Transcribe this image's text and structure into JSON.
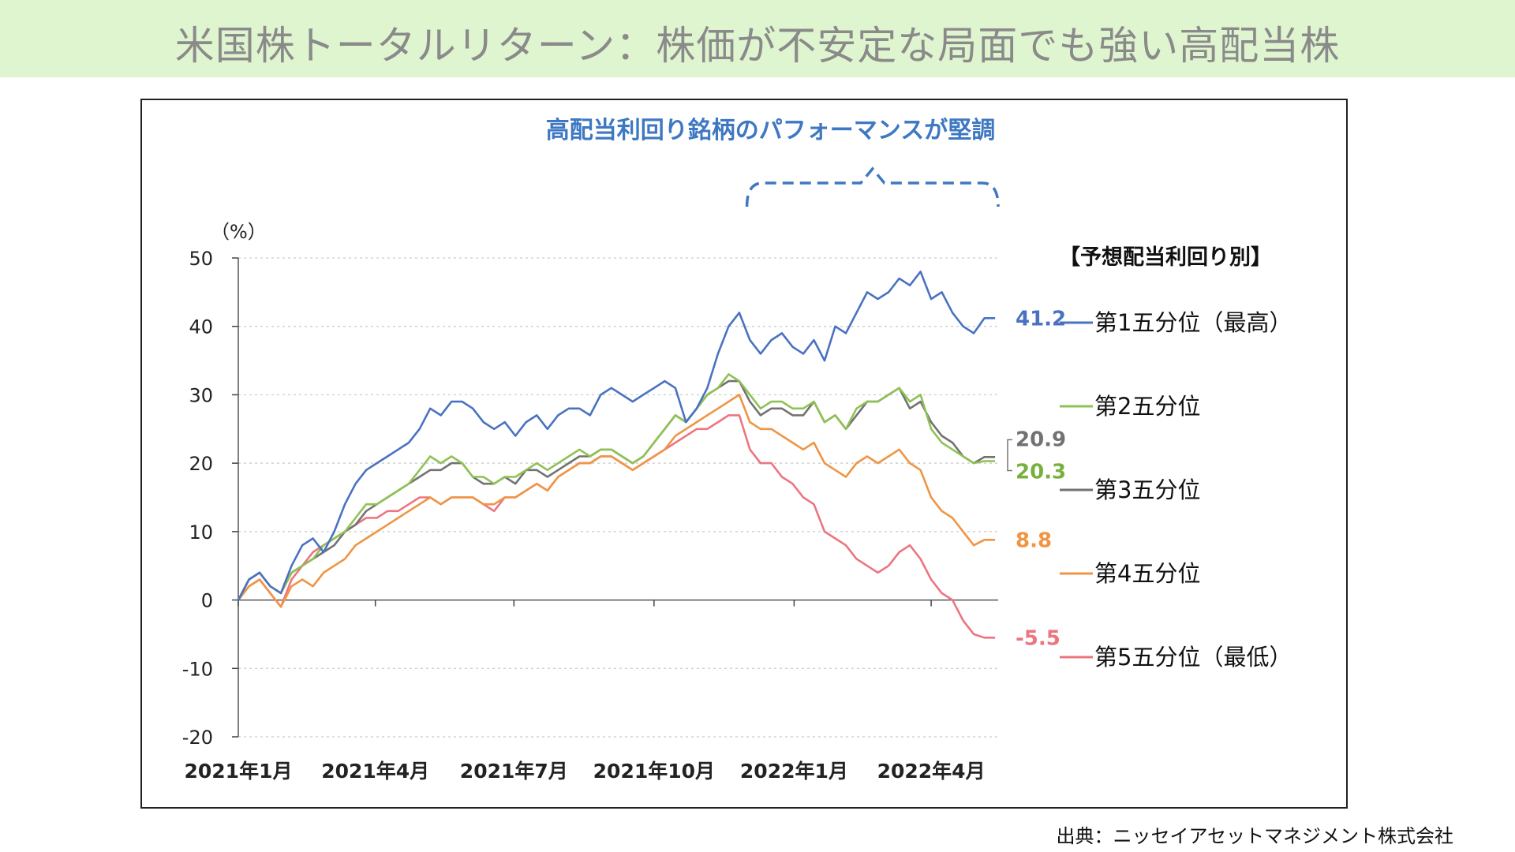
{
  "page": {
    "title": "米国株トータルリターン：株価が不安定な局面でも強い高配当株",
    "source": "出典：ニッセイアセットマネジメント株式会社"
  },
  "chart_data": {
    "type": "line",
    "title": "高配当利回り銘柄のパフォーマンスが堅調",
    "yunit": "（%）",
    "ylim": [
      -20,
      50
    ],
    "yticks": [
      50,
      40,
      30,
      20,
      10,
      0,
      -10,
      -20
    ],
    "xlim": [
      "2021-01-01",
      "2022-05-15"
    ],
    "xtick_labels": [
      "2021年1月",
      "2021年4月",
      "2021年7月",
      "2021年10月",
      "2022年1月",
      "2022年4月"
    ],
    "xtick_dates": [
      "2021-01-01",
      "2021-04-01",
      "2021-07-01",
      "2021-10-01",
      "2022-01-01",
      "2022-04-01"
    ],
    "grid": "horizontal dotted",
    "legend_title": "【予想配当利回り別】",
    "legend_placement": "right",
    "highlight_range": [
      "2021-12-01",
      "2022-05-15"
    ],
    "x": [
      "2021-01-01",
      "2021-01-08",
      "2021-01-15",
      "2021-01-22",
      "2021-01-29",
      "2021-02-05",
      "2021-02-12",
      "2021-02-19",
      "2021-02-26",
      "2021-03-05",
      "2021-03-12",
      "2021-03-19",
      "2021-03-26",
      "2021-04-02",
      "2021-04-09",
      "2021-04-16",
      "2021-04-23",
      "2021-04-30",
      "2021-05-07",
      "2021-05-14",
      "2021-05-21",
      "2021-05-28",
      "2021-06-04",
      "2021-06-11",
      "2021-06-18",
      "2021-06-25",
      "2021-07-02",
      "2021-07-09",
      "2021-07-16",
      "2021-07-23",
      "2021-07-30",
      "2021-08-06",
      "2021-08-13",
      "2021-08-20",
      "2021-08-27",
      "2021-09-03",
      "2021-09-10",
      "2021-09-17",
      "2021-09-24",
      "2021-10-01",
      "2021-10-08",
      "2021-10-15",
      "2021-10-22",
      "2021-10-29",
      "2021-11-05",
      "2021-11-12",
      "2021-11-19",
      "2021-11-26",
      "2021-12-03",
      "2021-12-10",
      "2021-12-17",
      "2021-12-24",
      "2021-12-31",
      "2022-01-07",
      "2022-01-14",
      "2022-01-21",
      "2022-01-28",
      "2022-02-04",
      "2022-02-11",
      "2022-02-18",
      "2022-02-25",
      "2022-03-04",
      "2022-03-11",
      "2022-03-18",
      "2022-03-25",
      "2022-04-01",
      "2022-04-08",
      "2022-04-15",
      "2022-04-22",
      "2022-04-29",
      "2022-05-06",
      "2022-05-13"
    ],
    "series": [
      {
        "name": "第1五分位（最高）",
        "color": "#4a72c0",
        "end_label": "41.2",
        "label_color": "#4a72c0",
        "values": [
          0,
          3,
          4,
          2,
          1,
          5,
          8,
          9,
          7,
          10,
          14,
          17,
          19,
          20,
          21,
          22,
          23,
          25,
          28,
          27,
          29,
          29,
          28,
          26,
          25,
          26,
          24,
          26,
          27,
          25,
          27,
          28,
          28,
          27,
          30,
          31,
          30,
          29,
          30,
          31,
          32,
          31,
          26,
          28,
          31,
          36,
          40,
          42,
          38,
          36,
          38,
          39,
          37,
          36,
          38,
          35,
          40,
          39,
          42,
          45,
          44,
          45,
          47,
          46,
          48,
          44,
          45,
          42,
          40,
          39,
          41.2,
          41.2
        ]
      },
      {
        "name": "第2五分位",
        "color": "#8fc254",
        "end_label": "20.3",
        "label_color": "#78b03c",
        "values": [
          0,
          3,
          4,
          2,
          1,
          4,
          5,
          6,
          8,
          9,
          10,
          12,
          14,
          14,
          15,
          16,
          17,
          19,
          21,
          20,
          21,
          20,
          18,
          18,
          17,
          18,
          18,
          19,
          20,
          19,
          20,
          21,
          22,
          21,
          22,
          22,
          21,
          20,
          21,
          23,
          25,
          27,
          26,
          28,
          30,
          31,
          33,
          32,
          30,
          28,
          29,
          29,
          28,
          28,
          29,
          26,
          27,
          25,
          28,
          29,
          29,
          30,
          31,
          29,
          30,
          25,
          23,
          22,
          21,
          20,
          20.3,
          20.3
        ]
      },
      {
        "name": "第3五分位",
        "color": "#727272",
        "end_label": "20.9",
        "label_color": "#727272",
        "values": [
          0,
          3,
          4,
          2,
          1,
          4,
          5,
          6,
          7,
          8,
          10,
          11,
          13,
          14,
          15,
          16,
          17,
          18,
          19,
          19,
          20,
          20,
          18,
          17,
          17,
          18,
          17,
          19,
          19,
          18,
          19,
          20,
          21,
          21,
          22,
          22,
          21,
          20,
          21,
          23,
          25,
          27,
          26,
          28,
          30,
          31,
          32,
          32,
          29,
          27,
          28,
          28,
          27,
          27,
          29,
          26,
          27,
          25,
          27,
          29,
          29,
          30,
          31,
          28,
          29,
          26,
          24,
          23,
          21,
          20,
          20.9,
          20.9
        ]
      },
      {
        "name": "第4五分位",
        "color": "#ef9544",
        "end_label": "8.8",
        "label_color": "#ef9544",
        "values": [
          0,
          2,
          3,
          1,
          -1,
          2,
          3,
          2,
          4,
          5,
          6,
          8,
          9,
          10,
          11,
          12,
          13,
          14,
          15,
          14,
          15,
          15,
          15,
          14,
          14,
          15,
          15,
          16,
          17,
          16,
          18,
          19,
          20,
          20,
          21,
          21,
          20,
          19,
          20,
          21,
          22,
          24,
          25,
          26,
          27,
          28,
          29,
          30,
          26,
          25,
          25,
          24,
          23,
          22,
          23,
          20,
          19,
          18,
          20,
          21,
          20,
          21,
          22,
          20,
          19,
          15,
          13,
          12,
          10,
          8,
          8.8,
          8.8
        ]
      },
      {
        "name": "第5五分位（最低）",
        "color": "#ec7580",
        "end_label": "-5.5",
        "label_color": "#ec7580",
        "values": [
          0,
          2,
          3,
          1,
          -1,
          3,
          5,
          7,
          8,
          9,
          10,
          11,
          12,
          12,
          13,
          13,
          14,
          15,
          15,
          14,
          15,
          15,
          15,
          14,
          13,
          15,
          15,
          16,
          17,
          16,
          18,
          19,
          20,
          20,
          21,
          21,
          20,
          19,
          20,
          21,
          22,
          23,
          24,
          25,
          25,
          26,
          27,
          27,
          22,
          20,
          20,
          18,
          17,
          15,
          14,
          10,
          9,
          8,
          6,
          5,
          4,
          5,
          7,
          8,
          6,
          3,
          1,
          0,
          -3,
          -5,
          -5.5,
          -5.5
        ]
      }
    ]
  }
}
